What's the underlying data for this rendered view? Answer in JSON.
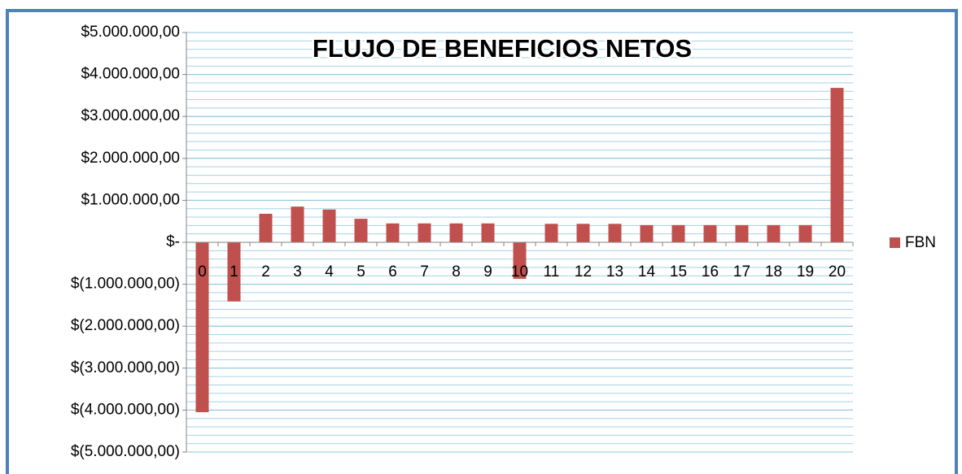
{
  "chart_data": {
    "type": "bar",
    "title": "FLUJO DE BENEFICIOS NETOS",
    "categories": [
      "0",
      "1",
      "2",
      "3",
      "4",
      "5",
      "6",
      "7",
      "8",
      "9",
      "10",
      "11",
      "12",
      "13",
      "14",
      "15",
      "16",
      "17",
      "18",
      "19",
      "20"
    ],
    "series": [
      {
        "name": "FBN",
        "color": "#c0504d",
        "values": [
          -4050000,
          -1410000,
          680000,
          850000,
          780000,
          560000,
          450000,
          450000,
          450000,
          450000,
          -870000,
          440000,
          440000,
          440000,
          410000,
          410000,
          410000,
          410000,
          410000,
          410000,
          3680000
        ]
      }
    ],
    "ylim": [
      -5000000,
      5000000
    ],
    "yticks": [
      {
        "value": 5000000,
        "label": "$5.000.000,00"
      },
      {
        "value": 4000000,
        "label": "$4.000.000,00"
      },
      {
        "value": 3000000,
        "label": "$3.000.000,00"
      },
      {
        "value": 2000000,
        "label": "$2.000.000,00"
      },
      {
        "value": 1000000,
        "label": "$1.000.000,00"
      },
      {
        "value": 0,
        "label": "$-"
      },
      {
        "value": -1000000,
        "label": "$(1.000.000,00)"
      },
      {
        "value": -2000000,
        "label": "$(2.000.000,00)"
      },
      {
        "value": -3000000,
        "label": "$(3.000.000,00)"
      },
      {
        "value": -4000000,
        "label": "$(4.000.000,00)"
      },
      {
        "value": -5000000,
        "label": "$(5.000.000,00)"
      }
    ],
    "grid": true,
    "grid_minor_step": 200000,
    "legend": "right"
  }
}
